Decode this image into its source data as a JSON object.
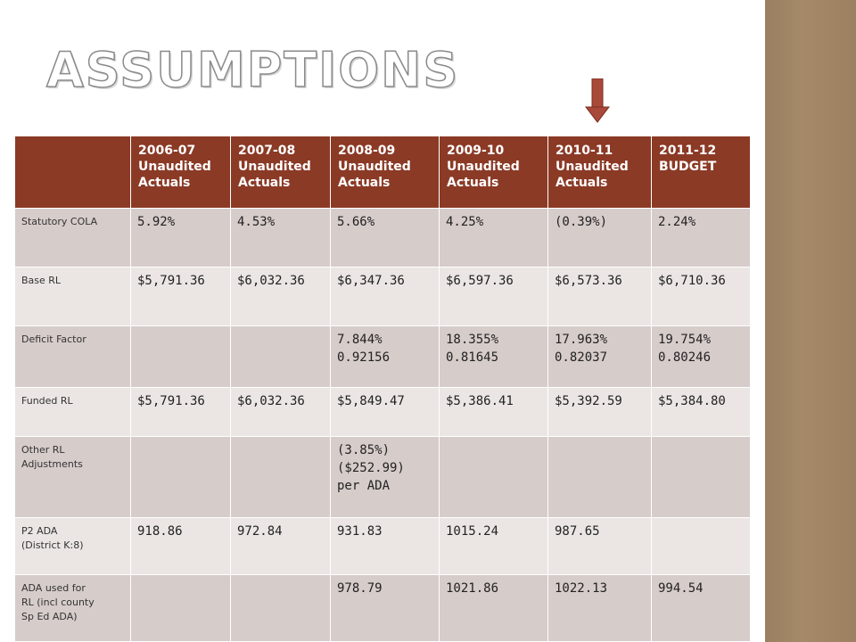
{
  "slide": {
    "title": "ASSUMPTIONS",
    "colors": {
      "header": "#8b3a26",
      "row_odd": "#d6ccca",
      "row_even": "#ebe6e4",
      "side_bar": "#a08565",
      "arrow": "#a8493a"
    },
    "icons": {
      "top_arrow": "arrow-down-icon",
      "bottom_arrow": "arrow-up-icon"
    }
  },
  "table": {
    "headers": [
      [
        "2006-07",
        "Unaudited",
        "Actuals"
      ],
      [
        "2007-08",
        "Unaudited",
        "Actuals"
      ],
      [
        "2008-09",
        "Unaudited",
        "Actuals"
      ],
      [
        "2009-10",
        "Unaudited",
        "Actuals"
      ],
      [
        "2010-11",
        "Unaudited",
        "Actuals"
      ],
      [
        "2011-12",
        "BUDGET"
      ]
    ],
    "rows": [
      {
        "label": [
          "Statutory COLA"
        ],
        "cells": [
          [
            "5.92%"
          ],
          [
            "4.53%"
          ],
          [
            "5.66%"
          ],
          [
            "4.25%"
          ],
          [
            "(0.39%)"
          ],
          [
            "2.24%"
          ]
        ]
      },
      {
        "label": [
          "Base RL"
        ],
        "cells": [
          [
            "$5,791.36"
          ],
          [
            "$6,032.36"
          ],
          [
            "$6,347.36"
          ],
          [
            "$6,597.36"
          ],
          [
            "$6,573.36"
          ],
          [
            "$6,710.36"
          ]
        ]
      },
      {
        "label": [
          "Deficit Factor"
        ],
        "cells": [
          [],
          [],
          [
            "7.844%",
            "0.92156"
          ],
          [
            "18.355%",
            "0.81645"
          ],
          [
            "17.963%",
            "0.82037"
          ],
          [
            "19.754%",
            "0.80246"
          ]
        ]
      },
      {
        "label": [
          "Funded RL"
        ],
        "cells": [
          [
            "$5,791.36"
          ],
          [
            "$6,032.36"
          ],
          [
            "$5,849.47"
          ],
          [
            "$5,386.41"
          ],
          [
            "$5,392.59"
          ],
          [
            "$5,384.80"
          ]
        ]
      },
      {
        "label": [
          "Other RL",
          "Adjustments"
        ],
        "cells": [
          [],
          [],
          [
            "(3.85%)",
            "($252.99)",
            "per ADA"
          ],
          [],
          [],
          []
        ]
      },
      {
        "label": [
          "P2 ADA",
          "(District K:8)"
        ],
        "cells": [
          [
            "918.86"
          ],
          [
            "972.84"
          ],
          [
            "931.83"
          ],
          [
            "1015.24"
          ],
          [
            "987.65"
          ],
          []
        ]
      },
      {
        "label": [
          "ADA used for",
          "RL (incl county",
          "Sp Ed ADA)"
        ],
        "cells": [
          [],
          [],
          [
            "978.79"
          ],
          [
            "1021.86"
          ],
          [
            "1022.13"
          ],
          [
            "994.54"
          ]
        ]
      }
    ]
  }
}
